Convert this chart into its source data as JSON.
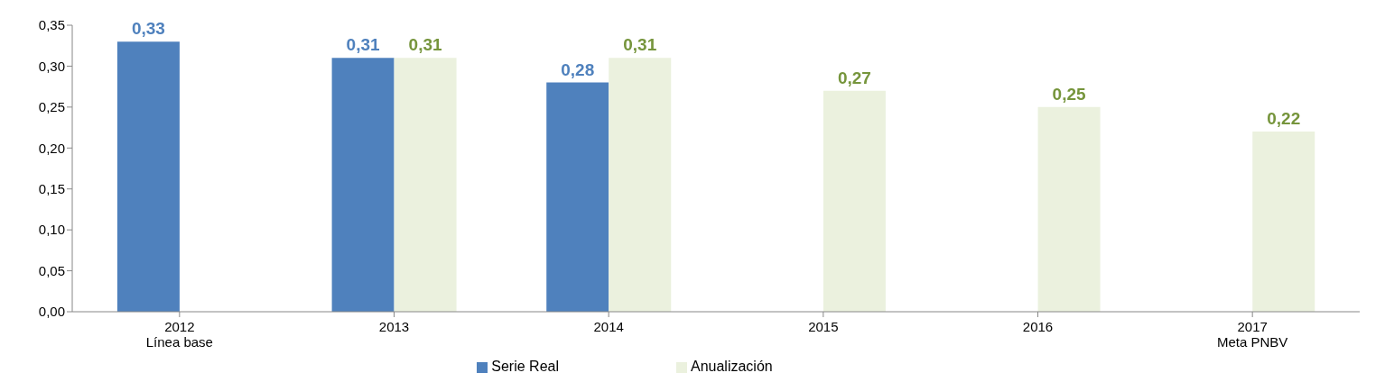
{
  "chart_data": {
    "type": "bar",
    "categories": [
      "2012\nLínea base",
      "2013",
      "2014",
      "2015",
      "2016",
      "2017\nMeta PNBV"
    ],
    "series": [
      {
        "name": "Serie Real",
        "color": "#4f81bd",
        "values": [
          0.33,
          0.31,
          0.28,
          null,
          null,
          null
        ],
        "value_labels": [
          "0,33",
          "0,31",
          "0,28",
          null,
          null,
          null
        ]
      },
      {
        "name": "Anualización",
        "color": "#ebf1de",
        "values": [
          null,
          0.31,
          0.31,
          0.27,
          0.25,
          0.22
        ],
        "value_labels": [
          null,
          "0,31",
          "0,31",
          "0,27",
          "0,25",
          "0,22"
        ]
      }
    ],
    "ylim": [
      0,
      0.35
    ],
    "yticks": [
      {
        "value": 0,
        "label": "0,00"
      },
      {
        "value": 0.05,
        "label": "0,05"
      },
      {
        "value": 0.1,
        "label": "0,10"
      },
      {
        "value": 0.15,
        "label": "0,15"
      },
      {
        "value": 0.2,
        "label": "0,20"
      },
      {
        "value": 0.25,
        "label": "0,25"
      },
      {
        "value": 0.3,
        "label": "0,30"
      },
      {
        "value": 0.35,
        "label": "0,35"
      }
    ],
    "grid": false,
    "legend": "bottom"
  }
}
